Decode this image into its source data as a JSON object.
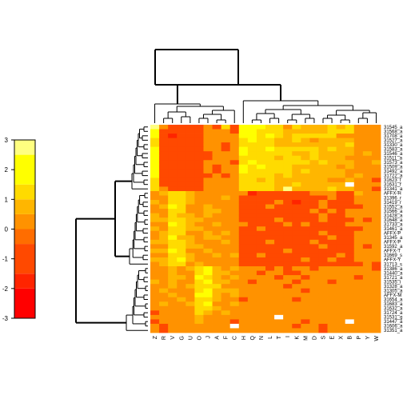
{
  "chart_data": {
    "type": "heatmap",
    "title": "",
    "columns": [
      "Z",
      "R",
      "V",
      "G",
      "U",
      "O",
      "J",
      "A",
      "F",
      "C",
      "H",
      "Q",
      "N",
      "L",
      "T",
      "I",
      "K",
      "M",
      "D",
      "S",
      "E",
      "X",
      "B",
      "P",
      "Y",
      "W"
    ],
    "rows": [
      "31545_at",
      "31568_at",
      "31708_at",
      "31527_at",
      "31330_at",
      "31583_at",
      "31546_at",
      "31511_at",
      "31573_at",
      "31509_at",
      "31492_at",
      "31722_at",
      "31623_f_at",
      "31631_f_at",
      "31341_at",
      "AFFX-HUMISGF3A/M97935_MB_at",
      "31396_r_at",
      "31419_r_at",
      "31552_at",
      "31566_at",
      "31428_at",
      "31648_at",
      "31733_at",
      "31461_at",
      "AFFX-PheX-3_at",
      "31345_at",
      "AFFX-PheX-5_at",
      "31592_at",
      "AFFX-ThrX-3_at",
      "31669_s_at",
      "AFFX-YEL021w/URA3_at",
      "31713_s_at",
      "31386_at",
      "31440_at",
      "31721_at",
      "31535_i_at",
      "31328_at",
      "31305_at",
      "AFFX-M27830_5_at",
      "31654_at",
      "31683_at",
      "31632_at",
      "31724_at",
      "31531_g_at",
      "31447_at",
      "31606_at",
      "31351_at"
    ],
    "row_labels_display": [
      "31545_a",
      "31568_a",
      "31708_a",
      "31527_a",
      "31330_a",
      "31583_a",
      "31546_a",
      "31511_a",
      "31573_a",
      "31509_a",
      "31492_a",
      "31722_a",
      "31623_f",
      "31631_f",
      "31341_a",
      "AFFX-H",
      "31396_r",
      "31419_r",
      "31552_a",
      "31566_a",
      "31428_a",
      "31648_a",
      "31733_a",
      "31461_a",
      "AFFX-P",
      "31345_a",
      "AFFX-P",
      "31592_a",
      "AFFX-T",
      "31669_s",
      "AFFX-Y",
      "31713_s",
      "31386_a",
      "31440_a",
      "31721_a",
      "31535_i",
      "31328_a",
      "31305_a",
      "AFFX-M",
      "31654_a",
      "31683_a",
      "31632_a",
      "31724_a",
      "31531_g",
      "31447_a",
      "31606_a",
      "31351_a"
    ],
    "color_scale": {
      "ticks": [
        -3,
        -2,
        -1,
        0,
        1,
        2,
        3
      ],
      "tick_labels": [
        "-3",
        "-2",
        "-1",
        "0",
        "1",
        "2",
        "3"
      ],
      "range": [
        -3,
        3
      ],
      "bins": [
        {
          "from": -3.0,
          "to": -2.0,
          "color": "#FF0000"
        },
        {
          "from": -2.0,
          "to": -1.5,
          "color": "#FF2400"
        },
        {
          "from": -1.5,
          "to": -0.5,
          "color": "#FF4900"
        },
        {
          "from": -0.5,
          "to": 0.0,
          "color": "#FF6D00"
        },
        {
          "from": 0.0,
          "to": 0.5,
          "color": "#FF9200"
        },
        {
          "from": 0.5,
          "to": 1.0,
          "color": "#FFB600"
        },
        {
          "from": 1.0,
          "to": 1.5,
          "color": "#FFDB00"
        },
        {
          "from": 1.5,
          "to": 2.5,
          "color": "#FFFF00"
        },
        {
          "from": 2.5,
          "to": 3.0,
          "color": "#FFFF80"
        }
      ]
    },
    "palette": [
      "#FF0000",
      "#FF2400",
      "#FF4900",
      "#FF6D00",
      "#FF9200",
      "#FFB600",
      "#FFDB00",
      "#FFFF00",
      "#FFFF80",
      "#FFFFFF"
    ],
    "values": [
      [
        2.5,
        0,
        -1,
        -1,
        -1,
        -1,
        0,
        -1,
        1,
        -1,
        1.5,
        2,
        1.5,
        1,
        1,
        0,
        1,
        0.5,
        0.5,
        0.5,
        1,
        0.5,
        1,
        0,
        0,
        0
      ],
      [
        2,
        -1,
        -1,
        -1,
        -1,
        -1,
        0,
        0,
        0,
        -1,
        1.5,
        2,
        1,
        1,
        1,
        0.5,
        0.5,
        0.5,
        0.5,
        0.5,
        1,
        1,
        1,
        0,
        0,
        0
      ],
      [
        2,
        -1,
        -2,
        -1,
        -1,
        -1,
        0,
        0,
        0,
        0,
        1.5,
        1.5,
        1,
        1.5,
        1,
        0.5,
        1,
        1,
        1,
        1,
        1,
        0,
        0,
        0,
        0,
        0
      ],
      [
        1,
        -1,
        -1,
        -1,
        -1,
        -1,
        0,
        0,
        0,
        0,
        1,
        1.5,
        1,
        1,
        0.5,
        0.5,
        1,
        0.5,
        0,
        0.5,
        0.5,
        0.5,
        0.5,
        0,
        0,
        0
      ],
      [
        1,
        -1,
        -1,
        -1,
        -1,
        -1,
        0,
        0,
        -1,
        0,
        1,
        1,
        1,
        1,
        0.5,
        0.5,
        0.5,
        0.5,
        0.5,
        0.5,
        0.5,
        0.5,
        1,
        0,
        0,
        0
      ],
      [
        2,
        -1,
        -1,
        -1,
        -1,
        -1,
        0,
        0,
        -1,
        0,
        1.5,
        1,
        1,
        1.5,
        1,
        1,
        1,
        1,
        1,
        0.5,
        1,
        0.5,
        0.5,
        0,
        0,
        0
      ],
      [
        2,
        -1,
        -1,
        -1,
        -1,
        -1,
        -1,
        0,
        0,
        0,
        1.5,
        1,
        1,
        1,
        1,
        1,
        0.5,
        0.5,
        1,
        0.5,
        0.5,
        0.5,
        0.5,
        0,
        0.5,
        0
      ],
      [
        1.5,
        -1,
        -1,
        -1,
        -1,
        -1,
        -1,
        0,
        0,
        0,
        1,
        1,
        1,
        1,
        0.5,
        1,
        1,
        0.5,
        1,
        0.5,
        0.5,
        0.5,
        0,
        0,
        0,
        0
      ],
      [
        2,
        -1,
        -1,
        -1,
        -1,
        -1,
        0,
        0,
        0,
        -1,
        1,
        1.5,
        1,
        1,
        1,
        1,
        1,
        1,
        0.5,
        1,
        0.5,
        0.5,
        0.5,
        0,
        0,
        0.5
      ],
      [
        2,
        -1,
        -1,
        -1,
        -1,
        -1,
        0,
        -1,
        0,
        0,
        1.5,
        1,
        1.5,
        1,
        1,
        1,
        0.5,
        0.5,
        0.5,
        0.5,
        0.5,
        0,
        0.5,
        0,
        0,
        0
      ],
      [
        2,
        -1,
        -1,
        -1,
        -1,
        -1,
        0,
        -1,
        0,
        0,
        1.5,
        1,
        1,
        1,
        1,
        1,
        0.5,
        1,
        0.5,
        0.5,
        0.5,
        0.5,
        0,
        0,
        0,
        0
      ],
      [
        1.5,
        -1,
        -1,
        -1,
        -1,
        -1,
        -1,
        0,
        -1,
        0,
        1,
        1,
        1,
        1,
        0.5,
        1,
        0.5,
        0.5,
        0.5,
        0.5,
        0.5,
        0.5,
        0,
        0.5,
        0,
        0
      ],
      [
        1,
        -1,
        -1,
        -1,
        -1,
        -1,
        0,
        0,
        0,
        0,
        1,
        1,
        0.5,
        1,
        0.5,
        0.5,
        0.5,
        0.5,
        0.5,
        0.5,
        0,
        0,
        0.5,
        0,
        0,
        -1
      ],
      [
        1,
        -1,
        -1,
        -1,
        -1,
        -1,
        0,
        0,
        0,
        0,
        1,
        1,
        1,
        1,
        0.5,
        0.5,
        1,
        0.5,
        0.5,
        0.5,
        0.5,
        0.5,
        3,
        0,
        0,
        0
      ],
      [
        1,
        0,
        -1,
        -1,
        -1,
        -1,
        0,
        0,
        0,
        0,
        1,
        1,
        1,
        1,
        0.5,
        2.5,
        0.5,
        0.5,
        0.5,
        0.5,
        1,
        0.5,
        0.5,
        0,
        0,
        -1
      ],
      [
        0,
        0.5,
        1,
        1,
        0.5,
        0,
        0,
        0,
        0,
        0,
        0,
        -2,
        -1,
        -1,
        -1,
        -1,
        -1,
        -1,
        0,
        0,
        0,
        -1,
        -1,
        0.5,
        0,
        0
      ],
      [
        0,
        0,
        1,
        1,
        0.5,
        0,
        0,
        0,
        0.5,
        0,
        -1,
        -1,
        -1,
        -1,
        -1,
        -1,
        -1,
        -1,
        -1,
        -1,
        0,
        -1,
        -1,
        0,
        0,
        0
      ],
      [
        0.5,
        0,
        1,
        1,
        0.5,
        0,
        0,
        0,
        0,
        0,
        -1,
        -1,
        -1,
        -1,
        0,
        -1,
        -2,
        -1,
        -1,
        0,
        -1,
        -1,
        -1,
        0,
        0,
        0
      ],
      [
        0,
        0.5,
        1.5,
        1,
        0,
        0,
        0.5,
        0,
        0,
        0,
        -1,
        -1,
        -1,
        0,
        -1,
        -1,
        -1,
        -1,
        -1,
        0,
        -1,
        -1,
        -1,
        -1,
        0,
        0
      ],
      [
        0,
        0,
        1,
        1,
        0,
        0,
        0.5,
        0.5,
        0,
        0,
        -1,
        -1,
        -1,
        -1,
        -1,
        -1,
        -1,
        -1,
        0,
        -1,
        0,
        -1,
        0,
        0,
        0,
        0
      ],
      [
        0.5,
        0,
        1,
        0.5,
        0.5,
        0,
        0.5,
        0,
        0,
        0,
        -1,
        -1,
        -1,
        -1,
        -1,
        -1,
        -1,
        -1,
        -1,
        0,
        -1,
        -1,
        0,
        0,
        0,
        0
      ],
      [
        0.5,
        0.5,
        1,
        1,
        0.5,
        0.5,
        0,
        0,
        0,
        0,
        -1,
        -1,
        -1,
        -1,
        0,
        -1,
        -1,
        -1,
        -1,
        0,
        -1,
        -1,
        -1,
        0,
        -1,
        0
      ],
      [
        0,
        0,
        1.5,
        1,
        0.5,
        0,
        0,
        0.5,
        0,
        0,
        0,
        -1,
        -1,
        -1,
        -1,
        0,
        -1,
        0,
        -1,
        -1,
        -1,
        -1,
        0,
        0,
        0,
        0
      ],
      [
        0.5,
        0,
        1,
        1,
        0.5,
        0.5,
        0,
        0,
        0,
        0,
        -1,
        -1,
        0,
        -1,
        -1,
        -1,
        -1,
        -1,
        -1,
        -1,
        -1,
        -1,
        -1,
        -1,
        0,
        0
      ],
      [
        0,
        0.5,
        1,
        1,
        0,
        0,
        0.5,
        0,
        0.5,
        0,
        -1,
        -1,
        -1,
        -1,
        -1,
        -1,
        -1,
        -1,
        -1,
        0,
        -1,
        -1,
        -1,
        0,
        0,
        0
      ],
      [
        0,
        0.5,
        1.5,
        0.5,
        0.5,
        0,
        0.5,
        0.5,
        0,
        0,
        -1,
        -1,
        -1,
        -1,
        -1,
        -1,
        -1,
        -1,
        -1,
        -1,
        0,
        -1,
        -1,
        0,
        0,
        0
      ],
      [
        0.5,
        0.5,
        1,
        1,
        0.5,
        0,
        0,
        0,
        0.5,
        0,
        -1,
        -1,
        -1,
        0,
        -1,
        -1,
        -1,
        -1,
        0,
        -1,
        -1,
        -1,
        -1,
        0,
        0,
        0
      ],
      [
        0,
        0,
        1,
        1,
        0.5,
        0.5,
        0,
        0,
        0,
        0,
        -1,
        -1,
        -1,
        -1,
        -1,
        -1,
        -1,
        -1,
        -1,
        0,
        -1,
        -1,
        -1,
        0,
        -1,
        0
      ],
      [
        0.5,
        0.5,
        1.5,
        1,
        0,
        0,
        0.5,
        0,
        0,
        0,
        -1,
        -1,
        -1,
        -1,
        -1,
        0,
        -1,
        -1,
        -1,
        -1,
        -1,
        -1,
        -1,
        0,
        0,
        0
      ],
      [
        0,
        0,
        1,
        1,
        0.5,
        0,
        0,
        0.5,
        0,
        0.5,
        -1,
        -1,
        0,
        -1,
        -1,
        -1,
        -1,
        -1,
        -1,
        -1,
        -1,
        0,
        -1,
        0,
        0,
        0
      ],
      [
        0.5,
        0.5,
        1,
        1.5,
        0.5,
        0,
        0,
        0,
        0,
        0,
        -1,
        -1,
        -1,
        -1,
        -1,
        -1,
        -1,
        0,
        -1,
        -1,
        0,
        -1,
        -1,
        0,
        0,
        0
      ],
      [
        0,
        0.5,
        1,
        1,
        0,
        0.5,
        0,
        0,
        0,
        0,
        -1,
        -1,
        -1,
        -1,
        -1,
        -1,
        -1,
        -1,
        -1,
        -1,
        -1,
        -1,
        -1,
        -1,
        0,
        -1
      ],
      [
        0,
        0,
        0.5,
        0,
        0.5,
        1,
        1.5,
        0.5,
        0,
        0.5,
        0,
        0,
        0,
        -1,
        0,
        -1,
        0,
        0,
        -1,
        0,
        0,
        0,
        0,
        0,
        0,
        -1
      ],
      [
        0,
        0,
        0.5,
        0,
        0,
        1,
        1.5,
        0.5,
        0.5,
        0,
        0,
        0,
        -1,
        0,
        0,
        -1,
        -1,
        0,
        0,
        0,
        0,
        0,
        0,
        0,
        0,
        0
      ],
      [
        0,
        0,
        0.5,
        0.5,
        0,
        1.5,
        1,
        0.5,
        0,
        0.5,
        0,
        0,
        0,
        0,
        -1,
        0,
        0,
        -1,
        0,
        0,
        0,
        0,
        0,
        -1,
        0,
        0
      ],
      [
        0.5,
        0,
        0.5,
        0,
        0,
        1,
        1.5,
        0.5,
        0.5,
        0,
        0,
        -1,
        0,
        0,
        0,
        0,
        -1,
        0,
        0,
        0,
        -1,
        0,
        0,
        0,
        0,
        0
      ],
      [
        0,
        0,
        0.5,
        0,
        0.5,
        1,
        1,
        1,
        0,
        0,
        0,
        0,
        0,
        0,
        0,
        -1,
        0,
        0,
        0,
        0,
        0,
        0,
        0,
        0,
        0,
        0
      ],
      [
        0,
        0.5,
        0,
        0,
        0,
        1,
        1.5,
        0.5,
        0.5,
        0.5,
        0,
        0,
        0,
        0,
        0,
        0,
        0,
        -1,
        0,
        0,
        0,
        0,
        0,
        0,
        0,
        0
      ],
      [
        0,
        0,
        0.5,
        0,
        0,
        1.5,
        1.5,
        0.5,
        0,
        0.5,
        0,
        0,
        0,
        0,
        0,
        0,
        0,
        0,
        0,
        0,
        0,
        0,
        0,
        0,
        0,
        0
      ],
      [
        0,
        0,
        0,
        0.5,
        0,
        1,
        1,
        0.5,
        0,
        0,
        -1,
        0,
        0,
        0,
        0,
        0,
        -1,
        0,
        0,
        0,
        0,
        0,
        0,
        0,
        0,
        0
      ],
      [
        0,
        0.5,
        0,
        0,
        0.5,
        1,
        1.5,
        0,
        0,
        0.5,
        0,
        0,
        0,
        0,
        0,
        0,
        0,
        0,
        0,
        0,
        0,
        0,
        0,
        0,
        0,
        0
      ],
      [
        0,
        0,
        0,
        0,
        0,
        1,
        1,
        0.5,
        0,
        0,
        0,
        0,
        0,
        0,
        0,
        0,
        0,
        0,
        0,
        0,
        0,
        0,
        0,
        0,
        0,
        0
      ],
      [
        -1,
        0,
        0,
        0,
        0,
        1,
        0.5,
        0,
        0.5,
        0,
        0,
        0,
        0,
        0,
        0,
        0,
        0,
        0,
        0,
        0,
        0,
        0,
        0,
        0,
        0,
        0
      ],
      [
        0,
        0,
        0,
        0,
        0,
        0.5,
        0,
        0,
        0,
        0,
        0,
        0,
        0,
        0,
        3,
        0,
        0,
        0,
        0,
        0,
        0,
        0,
        0,
        0,
        0,
        0
      ],
      [
        -1,
        0,
        0,
        0,
        0,
        0.5,
        0,
        0,
        0,
        -1,
        0,
        0,
        0,
        0,
        0,
        0,
        0,
        -1,
        0,
        0,
        0,
        0,
        3,
        0,
        0,
        0
      ],
      [
        0,
        -1,
        0,
        0,
        0,
        0,
        0,
        0,
        0,
        3,
        0,
        0,
        0,
        0,
        0,
        0,
        -1,
        0,
        0,
        -1,
        0,
        0,
        0,
        0,
        0,
        0
      ],
      [
        0,
        -1,
        0,
        0,
        0,
        0,
        0,
        0,
        0,
        0,
        0,
        0,
        0,
        0,
        0,
        0,
        0,
        0,
        0,
        -1,
        0,
        0,
        0,
        0,
        0,
        0
      ]
    ]
  }
}
